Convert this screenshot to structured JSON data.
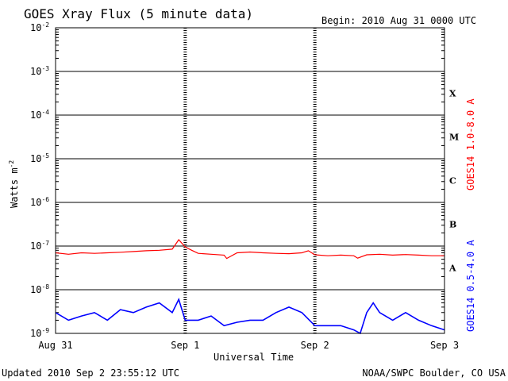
{
  "chart_data": {
    "type": "line",
    "title": "GOES Xray Flux (5 minute data)",
    "begin_label": "Begin:  2010 Aug 31 0000 UTC",
    "xlabel": "Universal Time",
    "ylabel_base": "Watts m",
    "ylabel_exp": "-2",
    "x_ticks": [
      "Aug 31",
      "Sep 1",
      "Sep 2",
      "Sep 3"
    ],
    "x_range_days": [
      0,
      3
    ],
    "y_scale": "log",
    "y_range": [
      1e-09,
      0.01
    ],
    "y_ticks": [
      {
        "base": "10",
        "exp": "-2"
      },
      {
        "base": "10",
        "exp": "-3"
      },
      {
        "base": "10",
        "exp": "-4"
      },
      {
        "base": "10",
        "exp": "-5"
      },
      {
        "base": "10",
        "exp": "-6"
      },
      {
        "base": "10",
        "exp": "-7"
      },
      {
        "base": "10",
        "exp": "-8"
      },
      {
        "base": "10",
        "exp": "-9"
      }
    ],
    "flare_classes": [
      "X",
      "M",
      "C",
      "B",
      "A"
    ],
    "series": [
      {
        "name": "GOES14 1.0-8.0 A",
        "color": "#ff0000",
        "x_days": [
          0.0,
          0.1,
          0.2,
          0.3,
          0.4,
          0.5,
          0.6,
          0.7,
          0.8,
          0.9,
          0.95,
          1.0,
          1.05,
          1.1,
          1.2,
          1.3,
          1.32,
          1.4,
          1.5,
          1.6,
          1.7,
          1.8,
          1.9,
          1.95,
          2.0,
          2.1,
          2.2,
          2.3,
          2.33,
          2.4,
          2.5,
          2.6,
          2.7,
          2.8,
          2.9,
          3.0
        ],
        "values": [
          7e-08,
          6.5e-08,
          7e-08,
          6.8e-08,
          7e-08,
          7.2e-08,
          7.5e-08,
          7.8e-08,
          8e-08,
          8.5e-08,
          1.4e-07,
          9.5e-08,
          8e-08,
          6.8e-08,
          6.5e-08,
          6.2e-08,
          5.2e-08,
          7e-08,
          7.3e-08,
          7e-08,
          6.8e-08,
          6.7e-08,
          7e-08,
          7.8e-08,
          6.3e-08,
          6e-08,
          6.2e-08,
          6e-08,
          5.3e-08,
          6.3e-08,
          6.5e-08,
          6.2e-08,
          6.4e-08,
          6.2e-08,
          6e-08,
          6e-08
        ]
      },
      {
        "name": "GOES14 0.5-4.0 A",
        "color": "#0000ff",
        "x_days": [
          0.0,
          0.1,
          0.2,
          0.3,
          0.4,
          0.5,
          0.6,
          0.7,
          0.8,
          0.9,
          0.95,
          1.0,
          1.1,
          1.2,
          1.3,
          1.4,
          1.5,
          1.6,
          1.7,
          1.8,
          1.9,
          2.0,
          2.1,
          2.2,
          2.3,
          2.35,
          2.4,
          2.45,
          2.5,
          2.6,
          2.7,
          2.8,
          2.9,
          3.0
        ],
        "values": [
          3e-09,
          2e-09,
          2.5e-09,
          3e-09,
          2e-09,
          3.5e-09,
          3e-09,
          4e-09,
          5e-09,
          3e-09,
          6e-09,
          2e-09,
          2e-09,
          2.5e-09,
          1.5e-09,
          1.8e-09,
          2e-09,
          2e-09,
          3e-09,
          4e-09,
          3e-09,
          1.5e-09,
          1.5e-09,
          1.5e-09,
          1.2e-09,
          1e-09,
          3e-09,
          5e-09,
          3e-09,
          2e-09,
          3e-09,
          2e-09,
          1.5e-09,
          1.2e-09
        ]
      }
    ]
  },
  "footer": {
    "updated": "Updated 2010 Sep  2 23:55:12 UTC",
    "credit": "NOAA/SWPC Boulder, CO USA"
  }
}
